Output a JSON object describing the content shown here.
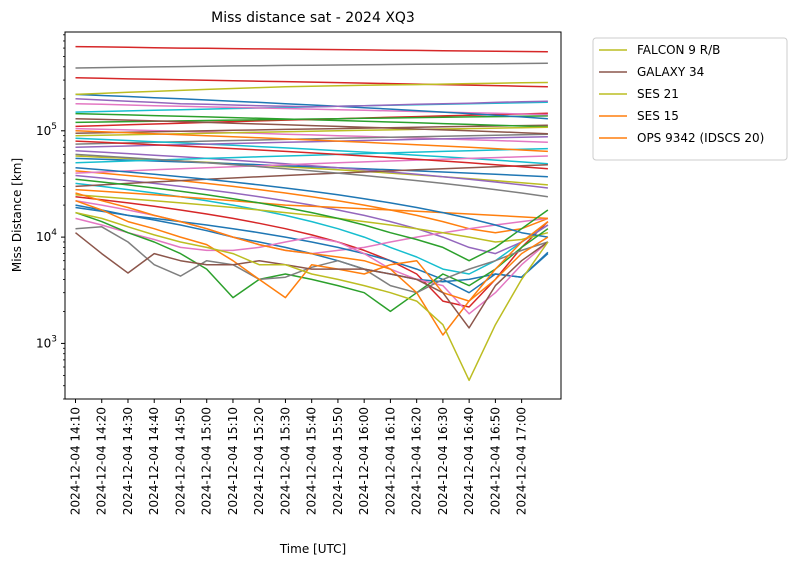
{
  "chart_data": {
    "type": "line",
    "title": "Miss distance sat - 2024 XQ3",
    "xlabel": "Time [UTC]",
    "ylabel": "Miss Distance [km]",
    "yscale": "log",
    "ylim": [
      300,
      850000
    ],
    "xlim": [
      "2024-12-04 14:06",
      "2024-12-04 17:15"
    ],
    "x_ticks": [
      "2024-12-04 14:10",
      "2024-12-04 14:20",
      "2024-12-04 14:30",
      "2024-12-04 14:40",
      "2024-12-04 14:50",
      "2024-12-04 15:00",
      "2024-12-04 15:10",
      "2024-12-04 15:20",
      "2024-12-04 15:30",
      "2024-12-04 15:40",
      "2024-12-04 15:50",
      "2024-12-04 16:00",
      "2024-12-04 16:10",
      "2024-12-04 16:20",
      "2024-12-04 16:30",
      "2024-12-04 16:40",
      "2024-12-04 16:50",
      "2024-12-04 17:00"
    ],
    "y_ticks": [
      {
        "label": "10",
        "exp": "3",
        "value": 1000
      },
      {
        "label": "10",
        "exp": "4",
        "value": 10000
      },
      {
        "label": "10",
        "exp": "5",
        "value": 100000
      }
    ],
    "legend_position": "outside-top-right",
    "x": [
      "2024-12-04 14:10",
      "2024-12-04 14:20",
      "2024-12-04 14:30",
      "2024-12-04 14:40",
      "2024-12-04 14:50",
      "2024-12-04 15:00",
      "2024-12-04 15:10",
      "2024-12-04 15:20",
      "2024-12-04 15:30",
      "2024-12-04 15:40",
      "2024-12-04 15:50",
      "2024-12-04 16:00",
      "2024-12-04 16:10",
      "2024-12-04 16:20",
      "2024-12-04 16:30",
      "2024-12-04 16:40",
      "2024-12-04 16:50",
      "2024-12-04 17:00",
      "2024-12-04 17:10"
    ],
    "series": [
      {
        "name": "FALCON 9 R/B",
        "color": "#bcbd22",
        "values": [
          17000,
          15000,
          12500,
          10500,
          9000,
          8000,
          7000,
          5500,
          5500,
          4500,
          4000,
          3500,
          3000,
          2500,
          1500,
          450,
          1500,
          4000,
          9000
        ]
      },
      {
        "name": "GALAXY 34",
        "color": "#8c564b",
        "values": [
          11000,
          7000,
          4600,
          7000,
          6000,
          5500,
          5500,
          6000,
          5500,
          5000,
          5000,
          5000,
          4500,
          4000,
          3000,
          1400,
          3500,
          6000,
          9000
        ]
      },
      {
        "name": "SES 21",
        "color": "#bcbd22",
        "values": [
          220000,
          225000,
          230000,
          235000,
          240000,
          245000,
          250000,
          255000,
          260000,
          262000,
          265000,
          268000,
          270000,
          272000,
          275000,
          278000,
          280000,
          283000,
          285000
        ]
      },
      {
        "name": "SES 15",
        "color": "#ff7f0e",
        "values": [
          22000,
          18000,
          14000,
          12000,
          10000,
          8500,
          6000,
          4000,
          2700,
          5500,
          5000,
          4500,
          5500,
          6000,
          3000,
          2500,
          4000,
          7000,
          10000
        ]
      },
      {
        "name": "OPS 9342 (IDSCS 20)",
        "color": "#ff7f0e",
        "values": [
          26000,
          22000,
          19000,
          16000,
          14000,
          12000,
          10000,
          8500,
          7500,
          7000,
          6500,
          6000,
          5000,
          3000,
          1200,
          2500,
          5000,
          9000,
          14000
        ]
      },
      {
        "color": "#d62728",
        "values": [
          620000,
          615000,
          610000,
          605000,
          600000,
          597000,
          593000,
          590000,
          587000,
          583000,
          580000,
          577000,
          573000,
          570000,
          567000,
          563000,
          560000,
          557000,
          553000
        ]
      },
      {
        "color": "#7f7f7f",
        "values": [
          390000,
          393000,
          396000,
          399000,
          402000,
          405000,
          408000,
          410000,
          412000,
          414000,
          416000,
          418000,
          420000,
          422000,
          424000,
          426000,
          428000,
          430000,
          432000
        ]
      },
      {
        "color": "#d62728",
        "values": [
          315000,
          312000,
          308000,
          305000,
          302000,
          299000,
          296000,
          293000,
          290000,
          287000,
          284000,
          281000,
          278000,
          275000,
          272000,
          269000,
          266000,
          263000,
          260000
        ]
      },
      {
        "color": "#7f7f7f",
        "values": [
          12000,
          12500,
          9000,
          5500,
          4300,
          6000,
          5500,
          4000,
          4200,
          5200,
          6000,
          5000,
          3500,
          3000,
          4000,
          5000,
          6000,
          7500,
          9000
        ]
      },
      {
        "color": "#2ca02c",
        "values": [
          17000,
          14000,
          11000,
          9000,
          7000,
          5000,
          2700,
          4000,
          4500,
          4000,
          3500,
          3000,
          2000,
          3000,
          4500,
          3500,
          5000,
          8000,
          12000
        ]
      },
      {
        "color": "#e377c2",
        "values": [
          15000,
          13000,
          11000,
          9500,
          8000,
          7500,
          7500,
          8000,
          9000,
          10000,
          9000,
          7000,
          5000,
          4000,
          3500,
          1900,
          3000,
          5500,
          9000
        ]
      },
      {
        "color": "#1f77b4",
        "values": [
          20000,
          18000,
          16000,
          15000,
          14000,
          13000,
          12000,
          11000,
          10000,
          9000,
          8000,
          7000,
          6000,
          5000,
          4000,
          3000,
          4500,
          4200,
          7000
        ]
      },
      {
        "color": "#9467bd",
        "values": [
          200000,
          195000,
          190000,
          185000,
          180000,
          178000,
          175000,
          172000,
          170000,
          168000,
          170000,
          172000,
          175000,
          178000,
          180000,
          182000,
          185000,
          188000,
          190000
        ]
      },
      {
        "color": "#1f77b4",
        "values": [
          220000,
          215000,
          210000,
          205000,
          200000,
          195000,
          190000,
          185000,
          180000,
          175000,
          170000,
          165000,
          160000,
          155000,
          150000,
          145000,
          140000,
          135000,
          130000
        ]
      },
      {
        "color": "#e377c2",
        "values": [
          180000,
          178000,
          175000,
          172000,
          170000,
          168000,
          166000,
          164000,
          162000,
          160000,
          158000,
          156000,
          154000,
          152000,
          150000,
          148000,
          146000,
          144000,
          142000
        ]
      },
      {
        "color": "#17becf",
        "values": [
          150000,
          152000,
          154000,
          156000,
          158000,
          160000,
          162000,
          164000,
          166000,
          168000,
          170000,
          172000,
          174000,
          176000,
          178000,
          180000,
          182000,
          184000,
          186000
        ]
      },
      {
        "color": "#8c564b",
        "values": [
          130000,
          128000,
          126000,
          124000,
          122000,
          120000,
          118000,
          116000,
          114000,
          112000,
          110000,
          108000,
          106000,
          104000,
          102000,
          100000,
          98000,
          96000,
          94000
        ]
      },
      {
        "color": "#2ca02c",
        "values": [
          120000,
          121000,
          122000,
          123000,
          124000,
          125000,
          126000,
          127000,
          128000,
          129000,
          130000,
          131000,
          132000,
          133000,
          134000,
          135000,
          136000,
          137000,
          138000
        ]
      },
      {
        "color": "#ff7f0e",
        "values": [
          100000,
          98000,
          96000,
          94000,
          92000,
          90000,
          88000,
          86000,
          84000,
          82000,
          80000,
          78000,
          76000,
          74000,
          72000,
          70000,
          68000,
          66000,
          64000
        ]
      },
      {
        "color": "#bcbd22",
        "values": [
          90000,
          91000,
          92000,
          93000,
          94000,
          95000,
          96000,
          97000,
          98000,
          99000,
          100000,
          101000,
          102000,
          103000,
          104000,
          105000,
          106000,
          107000,
          108000
        ]
      },
      {
        "color": "#d62728",
        "values": [
          80000,
          78000,
          76000,
          74000,
          72000,
          70000,
          68000,
          66000,
          64000,
          62000,
          60000,
          58000,
          56000,
          54000,
          52000,
          50000,
          48000,
          46000,
          44000
        ]
      },
      {
        "color": "#9467bd",
        "values": [
          70000,
          71000,
          72000,
          73000,
          74000,
          75000,
          76000,
          77000,
          78000,
          79000,
          80000,
          81000,
          82000,
          83000,
          84000,
          85000,
          86000,
          87000,
          88000
        ]
      },
      {
        "color": "#7f7f7f",
        "values": [
          60000,
          58000,
          56000,
          54000,
          52000,
          50000,
          48000,
          46000,
          44000,
          42000,
          40000,
          38000,
          36000,
          34000,
          32000,
          30000,
          28000,
          26000,
          24000
        ]
      },
      {
        "color": "#17becf",
        "values": [
          50000,
          51000,
          52000,
          53000,
          54000,
          55000,
          56000,
          57000,
          58000,
          59000,
          60000,
          61000,
          62000,
          63000,
          64000,
          65000,
          66000,
          67000,
          68000
        ]
      },
      {
        "color": "#1f77b4",
        "values": [
          45000,
          43000,
          41000,
          39000,
          37000,
          35000,
          33000,
          31000,
          29000,
          27000,
          25000,
          23000,
          21000,
          19000,
          17000,
          15000,
          13000,
          11000,
          10000
        ]
      },
      {
        "color": "#e377c2",
        "values": [
          40000,
          41000,
          42000,
          43000,
          44000,
          45000,
          46000,
          47000,
          48000,
          49000,
          50000,
          51000,
          52000,
          53000,
          54000,
          55000,
          56000,
          57000,
          58000
        ]
      },
      {
        "color": "#2ca02c",
        "values": [
          35000,
          33000,
          31000,
          29000,
          27000,
          25000,
          23000,
          21000,
          19000,
          17000,
          15000,
          13000,
          11000,
          9500,
          8000,
          6000,
          8000,
          12000,
          18000
        ]
      },
      {
        "color": "#8c564b",
        "values": [
          30000,
          31000,
          32000,
          33000,
          34000,
          35000,
          36000,
          37000,
          38000,
          39000,
          40000,
          41000,
          42000,
          43000,
          44000,
          45000,
          46000,
          47000,
          48000
        ]
      },
      {
        "color": "#bcbd22",
        "values": [
          25000,
          24000,
          23000,
          22000,
          21000,
          20000,
          19000,
          18000,
          17000,
          16000,
          15000,
          14000,
          13000,
          12000,
          11000,
          10000,
          9000,
          9500,
          11000
        ]
      },
      {
        "color": "#ff7f0e",
        "values": [
          28000,
          27000,
          26000,
          25000,
          24000,
          23000,
          22000,
          21000,
          20000,
          19500,
          19000,
          18500,
          18000,
          17500,
          17000,
          16500,
          16000,
          15500,
          15000
        ]
      },
      {
        "color": "#9467bd",
        "values": [
          65000,
          63000,
          61000,
          59000,
          57000,
          55000,
          53000,
          51000,
          49000,
          47000,
          45000,
          43000,
          41000,
          39000,
          37000,
          35000,
          33000,
          31000,
          29000
        ]
      },
      {
        "color": "#d62728",
        "values": [
          110000,
          112000,
          114000,
          116000,
          118000,
          120000,
          122000,
          124000,
          126000,
          128000,
          130000,
          132000,
          134000,
          136000,
          138000,
          140000,
          142000,
          144000,
          146000
        ]
      },
      {
        "color": "#17becf",
        "values": [
          85000,
          83000,
          81000,
          79000,
          77000,
          75000,
          73000,
          71000,
          69000,
          67000,
          65000,
          63000,
          61000,
          59000,
          57000,
          55000,
          53000,
          51000,
          49000
        ]
      },
      {
        "color": "#1f77b4",
        "values": [
          55000,
          54000,
          53000,
          52000,
          51000,
          50000,
          49000,
          48000,
          47000,
          46000,
          45000,
          44000,
          43000,
          42000,
          41000,
          40000,
          39000,
          38000,
          37000
        ]
      },
      {
        "color": "#7f7f7f",
        "values": [
          75000,
          76000,
          77000,
          78000,
          79000,
          80000,
          81000,
          82000,
          83000,
          84000,
          85000,
          86000,
          87000,
          88000,
          89000,
          90000,
          91000,
          92000,
          93000
        ]
      },
      {
        "color": "#e377c2",
        "values": [
          22000,
          20000,
          18000,
          16000,
          14000,
          12000,
          10000,
          8500,
          7500,
          7000,
          7500,
          8000,
          9000,
          10000,
          11000,
          12000,
          13000,
          14000,
          15000
        ]
      },
      {
        "color": "#2ca02c",
        "values": [
          145000,
          143000,
          141000,
          139000,
          137000,
          135000,
          133000,
          131000,
          129000,
          127000,
          125000,
          123000,
          121000,
          119000,
          117000,
          115000,
          113000,
          111000,
          109000
        ]
      },
      {
        "color": "#8c564b",
        "values": [
          95000,
          96000,
          97000,
          98000,
          99000,
          100000,
          101000,
          102000,
          103000,
          104000,
          105000,
          106000,
          107000,
          108000,
          109000,
          110000,
          111000,
          112000,
          113000
        ]
      },
      {
        "color": "#9467bd",
        "values": [
          38000,
          36000,
          34000,
          32000,
          30000,
          28000,
          26000,
          24000,
          22000,
          20000,
          18000,
          16000,
          14000,
          12000,
          10000,
          8000,
          7000,
          9000,
          13000
        ]
      },
      {
        "color": "#17becf",
        "values": [
          32000,
          30000,
          28000,
          26000,
          24000,
          22000,
          20000,
          18000,
          16000,
          14000,
          12000,
          10000,
          8000,
          6500,
          5000,
          4500,
          6000,
          9000,
          13000
        ]
      },
      {
        "color": "#1f77b4",
        "values": [
          19000,
          17500,
          16000,
          14500,
          13000,
          11500,
          10000,
          9000,
          8000,
          7000,
          6000,
          5000,
          4500,
          4000,
          3800,
          4000,
          4500,
          4200,
          7200
        ]
      },
      {
        "color": "#ff7f0e",
        "values": [
          42000,
          40000,
          38000,
          36000,
          34000,
          32000,
          30000,
          28000,
          26000,
          24000,
          22000,
          20000,
          18000,
          16000,
          14000,
          12000,
          11000,
          12000,
          15000
        ]
      },
      {
        "color": "#d62728",
        "values": [
          24000,
          22500,
          21000,
          19500,
          18000,
          16500,
          15000,
          13500,
          12000,
          10500,
          9000,
          7500,
          6000,
          4500,
          2500,
          2200,
          4000,
          8000,
          14000
        ]
      },
      {
        "color": "#bcbd22",
        "values": [
          58000,
          56500,
          55000,
          53500,
          52000,
          50500,
          49000,
          47500,
          46000,
          44500,
          43000,
          41500,
          40000,
          38500,
          37000,
          35500,
          34000,
          32500,
          31000
        ]
      },
      {
        "color": "#e377c2",
        "values": [
          105000,
          103500,
          102000,
          100500,
          99000,
          97500,
          96000,
          94500,
          93000,
          91500,
          90000,
          88500,
          87000,
          85500,
          84000,
          82500,
          81000,
          79500,
          78000
        ]
      }
    ]
  }
}
